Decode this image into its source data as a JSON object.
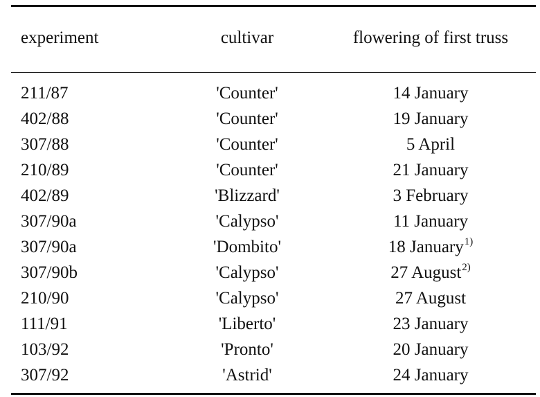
{
  "table": {
    "headers": {
      "experiment": "experiment",
      "cultivar": "cultivar",
      "flowering": "flowering of first truss"
    },
    "rows": [
      {
        "experiment": "211/87",
        "cultivar": "'Counter'",
        "flowering": "14 January",
        "note": ""
      },
      {
        "experiment": "402/88",
        "cultivar": "'Counter'",
        "flowering": "19 January",
        "note": ""
      },
      {
        "experiment": "307/88",
        "cultivar": "'Counter'",
        "flowering": "5 April",
        "note": ""
      },
      {
        "experiment": "210/89",
        "cultivar": "'Counter'",
        "flowering": "21 January",
        "note": ""
      },
      {
        "experiment": "402/89",
        "cultivar": "'Blizzard'",
        "flowering": "3 February",
        "note": ""
      },
      {
        "experiment": "307/90a",
        "cultivar": "'Calypso'",
        "flowering": "11 January",
        "note": ""
      },
      {
        "experiment": "307/90a",
        "cultivar": "'Dombito'",
        "flowering": "18 January",
        "note": "1)"
      },
      {
        "experiment": "307/90b",
        "cultivar": "'Calypso'",
        "flowering": "27 August",
        "note": "2)"
      },
      {
        "experiment": "210/90",
        "cultivar": "'Calypso'",
        "flowering": "27 August",
        "note": ""
      },
      {
        "experiment": "111/91",
        "cultivar": "'Liberto'",
        "flowering": "23 January",
        "note": ""
      },
      {
        "experiment": "103/92",
        "cultivar": "'Pronto'",
        "flowering": "20 January",
        "note": ""
      },
      {
        "experiment": "307/92",
        "cultivar": "'Astrid'",
        "flowering": "24 January",
        "note": ""
      }
    ]
  }
}
